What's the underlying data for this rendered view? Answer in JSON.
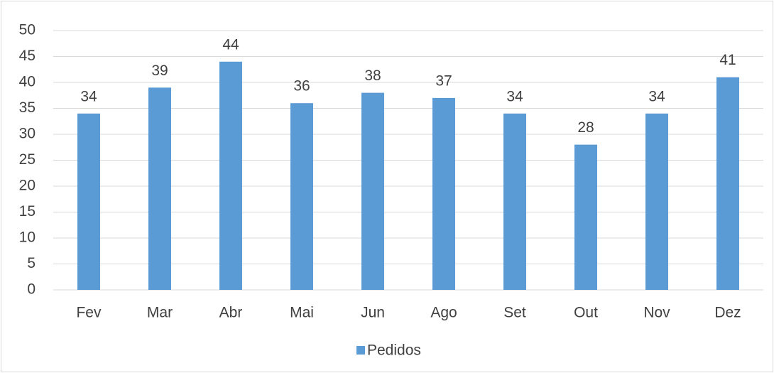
{
  "chart_data": {
    "type": "bar",
    "categories": [
      "Fev",
      "Mar",
      "Abr",
      "Mai",
      "Jun",
      "Ago",
      "Set",
      "Out",
      "Nov",
      "Dez"
    ],
    "series": [
      {
        "name": "Pedidos",
        "color": "#5b9bd5",
        "values": [
          34,
          39,
          44,
          36,
          38,
          37,
          34,
          28,
          34,
          41
        ]
      }
    ],
    "ylim": [
      0,
      50
    ],
    "yticks": [
      0,
      5,
      10,
      15,
      20,
      25,
      30,
      35,
      40,
      45,
      50
    ],
    "grid": true,
    "legend": "bottom",
    "data_labels": true
  }
}
